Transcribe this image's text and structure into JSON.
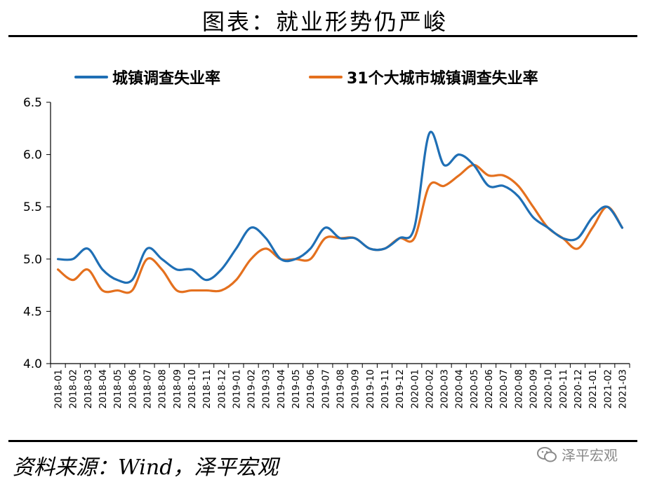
{
  "header": {
    "title": "图表：就业形势仍严峻"
  },
  "footer": {
    "source": "资料来源：Wind，泽平宏观",
    "watermark": "泽平宏观",
    "watermark_icon": "wechat-icon"
  },
  "chart_data": {
    "type": "line",
    "title": "图表：就业形势仍严峻",
    "xlabel": "",
    "ylabel": "",
    "ylim": [
      4.0,
      6.5
    ],
    "yticks": [
      "4.0",
      "4.5",
      "5.0",
      "5.5",
      "6.0",
      "6.5"
    ],
    "grid": false,
    "legend_position": "top",
    "categories": [
      "2018-01",
      "2018-02",
      "2018-03",
      "2018-04",
      "2018-05",
      "2018-06",
      "2018-07",
      "2018-08",
      "2018-09",
      "2018-10",
      "2018-11",
      "2018-12",
      "2019-01",
      "2019-02",
      "2019-03",
      "2019-04",
      "2019-05",
      "2019-06",
      "2019-07",
      "2019-08",
      "2019-09",
      "2019-10",
      "2019-11",
      "2019-12",
      "2020-01",
      "2020-02",
      "2020-03",
      "2020-04",
      "2020-05",
      "2020-06",
      "2020-07",
      "2020-08",
      "2020-09",
      "2020-10",
      "2020-11",
      "2020-12",
      "2021-01",
      "2021-02",
      "2021-03"
    ],
    "series": [
      {
        "name": "城镇调查失业率",
        "color": "#1f6fb5",
        "values": [
          5.0,
          5.0,
          5.1,
          4.9,
          4.8,
          4.8,
          5.1,
          5.0,
          4.9,
          4.9,
          4.8,
          4.9,
          5.1,
          5.3,
          5.2,
          5.0,
          5.0,
          5.1,
          5.3,
          5.2,
          5.2,
          5.1,
          5.1,
          5.2,
          5.3,
          6.2,
          5.9,
          6.0,
          5.9,
          5.7,
          5.7,
          5.6,
          5.4,
          5.3,
          5.2,
          5.2,
          5.4,
          5.5,
          5.3
        ]
      },
      {
        "name": "31个大城市城镇调查失业率",
        "color": "#e4701e",
        "values": [
          4.9,
          4.8,
          4.9,
          4.7,
          4.7,
          4.7,
          5.0,
          4.9,
          4.7,
          4.7,
          4.7,
          4.7,
          4.8,
          5.0,
          5.1,
          5.0,
          5.0,
          5.0,
          5.2,
          5.2,
          5.2,
          5.1,
          5.1,
          5.2,
          5.2,
          5.7,
          5.7,
          5.8,
          5.9,
          5.8,
          5.8,
          5.7,
          5.5,
          5.3,
          5.2,
          5.1,
          5.3,
          5.5,
          5.3
        ]
      }
    ]
  }
}
